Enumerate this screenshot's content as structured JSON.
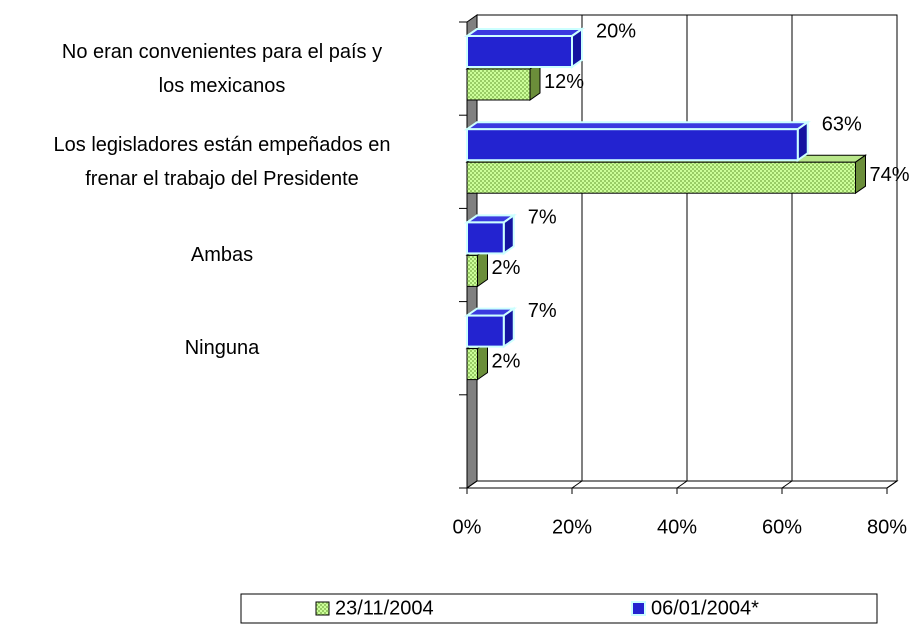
{
  "chart_data": {
    "type": "bar3d_horizontal",
    "categories": [
      "No eran convenientes para el país y\nlos mexicanos",
      "Los legisladores están empeñados en\nfrenar el trabajo del Presidente",
      "Ambas",
      "Ninguna",
      null
    ],
    "series": [
      {
        "name": "23/11/2004",
        "color": "#ccff99",
        "values": [
          12,
          74,
          2,
          2,
          null
        ],
        "value_labels": [
          "12%",
          "74%",
          "2%",
          "2%",
          null
        ]
      },
      {
        "name": "06/01/2004*",
        "color": "#2323d0",
        "values": [
          20,
          63,
          7,
          7,
          null
        ],
        "value_labels": [
          "20%",
          "63%",
          "7%",
          "7%",
          null
        ]
      }
    ],
    "xlim": [
      0,
      80
    ],
    "xticks": [
      {
        "value": 0,
        "label": "0%"
      },
      {
        "value": 20,
        "label": "20%"
      },
      {
        "value": 40,
        "label": "40%"
      },
      {
        "value": 60,
        "label": "60%"
      },
      {
        "value": 80,
        "label": "80%"
      }
    ],
    "grid": true
  }
}
